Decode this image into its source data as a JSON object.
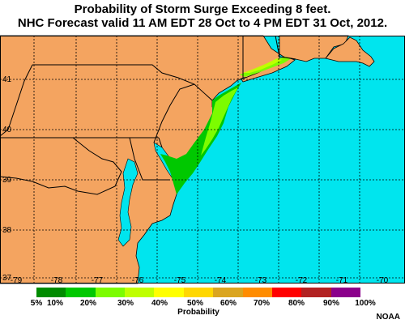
{
  "title_line1": "Probability of Storm Surge Exceeding 8 feet.",
  "title_line2": "NHC Forecast valid 11 AM EDT 28 Oct to 4 PM EDT 31 Oct, 2012.",
  "colors": {
    "land": "#f4a460",
    "water": "#00e5ee",
    "border": "#000000",
    "graticule": "#000000"
  },
  "latitude_labels": [
    "41",
    "40",
    "39",
    "38",
    "37"
  ],
  "longitude_labels": [
    "-79",
    "-78",
    "-77",
    "-76",
    "-75",
    "-74",
    "-73",
    "-72",
    "-71",
    "-70"
  ],
  "legend": {
    "title": "Probability",
    "tick_labels": [
      "5%",
      "10%",
      "20%",
      "30%",
      "40%",
      "50%",
      "60%",
      "70%",
      "80%",
      "90%",
      "100%"
    ],
    "colors": [
      "#008b00",
      "#00c800",
      "#7cfc00",
      "#bfff00",
      "#ffff00",
      "#ffd700",
      "#daa520",
      "#ff8c00",
      "#ff0000",
      "#b22222",
      "#8b008b"
    ]
  },
  "surge_zones": [
    {
      "level": "10-20%",
      "color": "#00c800"
    },
    {
      "level": "20-30%",
      "color": "#7cfc00"
    },
    {
      "level": "30-40%",
      "color": "#bfff00"
    }
  ],
  "credit": "NOAA"
}
